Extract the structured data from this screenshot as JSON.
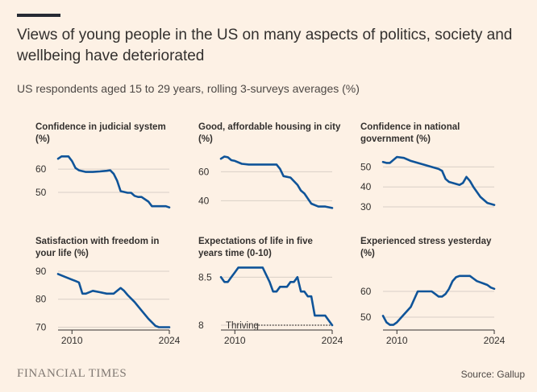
{
  "header": {
    "title": "Views of young people in the US on many aspects of politics, society and wellbeing have deteriorated",
    "subtitle": "US respondents aged 15 to 29 years, rolling 3-surveys averages (%)"
  },
  "footer": {
    "brand": "FINANCIAL TIMES",
    "source": "Source: Gallup"
  },
  "colors": {
    "background": "#fdf1e5",
    "line": "#0f5499",
    "grid": "#d9cfc6",
    "text": "#33302e",
    "reference": "#33302e"
  },
  "chart_data": [
    {
      "type": "line",
      "title_lines": [
        "Confidence in judicial system",
        "(%)"
      ],
      "yticks": [
        60,
        50
      ],
      "ylim": [
        42,
        67
      ],
      "xlim": [
        2008,
        2024
      ],
      "xticks": [],
      "x": [
        2008,
        2008.5,
        2009,
        2009.5,
        2010,
        2010.5,
        2011,
        2012,
        2013,
        2014,
        2015,
        2015.5,
        2016,
        2016.5,
        2017,
        2018,
        2018.5,
        2019,
        2019.5,
        2020,
        2021,
        2021.5,
        2022,
        2022.5,
        2023,
        2023.5,
        2024
      ],
      "values": [
        64.5,
        65.5,
        65.5,
        65.5,
        63.5,
        60.5,
        59.5,
        58.8,
        58.8,
        59,
        59.3,
        59.5,
        58,
        55,
        50.5,
        49.8,
        49.8,
        48.5,
        48,
        48,
        46,
        44,
        44,
        44,
        44,
        44,
        43.5
      ],
      "reference": null
    },
    {
      "type": "line",
      "title_lines": [
        "Good, affordable housing in city",
        "(%)"
      ],
      "yticks": [
        60,
        40
      ],
      "ylim": [
        33,
        73
      ],
      "xlim": [
        2008,
        2024
      ],
      "xticks": [],
      "x": [
        2008,
        2008.5,
        2009,
        2009.5,
        2010,
        2011,
        2012,
        2013,
        2014,
        2015,
        2016,
        2016.5,
        2017,
        2018,
        2019,
        2019.5,
        2020,
        2021,
        2022,
        2023,
        2024
      ],
      "values": [
        69,
        70.5,
        70,
        68,
        67.5,
        65.5,
        65,
        65,
        65,
        65,
        65,
        62,
        57,
        56,
        51,
        47,
        45,
        38,
        36,
        36,
        35
      ],
      "reference": null
    },
    {
      "type": "line",
      "title_lines": [
        "Confidence in national",
        "government (%)"
      ],
      "yticks": [
        50,
        40,
        30
      ],
      "ylim": [
        28,
        57
      ],
      "xlim": [
        2008,
        2024
      ],
      "xticks": [],
      "x": [
        2008,
        2008.5,
        2009,
        2009.5,
        2010,
        2011,
        2012,
        2013,
        2014,
        2015,
        2016,
        2016.5,
        2017,
        2017.5,
        2018,
        2018.5,
        2019,
        2019.5,
        2020,
        2020.5,
        2021,
        2022,
        2023,
        2024
      ],
      "values": [
        52.5,
        52,
        52,
        53.5,
        55,
        54.5,
        53,
        52,
        51,
        50,
        49,
        48,
        44,
        42.5,
        42,
        41.5,
        41,
        42,
        45,
        43,
        40,
        35,
        32,
        31
      ],
      "reference": null
    },
    {
      "type": "line",
      "title_lines": [
        "Satisfaction with freedom in",
        "your life (%)"
      ],
      "yticks": [
        90,
        80,
        70
      ],
      "ylim": [
        69,
        92
      ],
      "xlim": [
        2008,
        2024
      ],
      "xticks": [
        "2010",
        "2024"
      ],
      "x": [
        2008,
        2009,
        2010,
        2010.5,
        2011,
        2011.5,
        2012,
        2013,
        2014,
        2015,
        2016,
        2017,
        2017.5,
        2018,
        2019,
        2020,
        2021,
        2022,
        2022.5,
        2023,
        2023.5,
        2024
      ],
      "values": [
        89,
        88,
        87,
        86.5,
        86,
        82,
        82,
        83,
        82.5,
        82,
        82,
        84,
        83,
        81.5,
        79,
        76,
        73,
        70.5,
        70,
        70,
        70,
        70
      ],
      "reference": null
    },
    {
      "type": "line",
      "title_lines": [
        "Expectations of life in five",
        "years time (0-10)"
      ],
      "yticks": [
        8.5,
        8
      ],
      "ylim": [
        7.95,
        8.62
      ],
      "xlim": [
        2008,
        2024
      ],
      "xticks": [
        "2010",
        "2024"
      ],
      "x": [
        2008,
        2008.5,
        2009,
        2009.5,
        2010,
        2010.5,
        2011,
        2012,
        2013,
        2014,
        2015,
        2015.5,
        2016,
        2016.5,
        2017,
        2017.5,
        2018,
        2018.5,
        2019,
        2019.5,
        2020,
        2020.5,
        2021,
        2021.5,
        2022,
        2022.5,
        2023,
        2023.5,
        2024
      ],
      "values": [
        8.5,
        8.45,
        8.45,
        8.5,
        8.55,
        8.6,
        8.6,
        8.6,
        8.6,
        8.6,
        8.45,
        8.35,
        8.35,
        8.4,
        8.4,
        8.4,
        8.45,
        8.45,
        8.5,
        8.35,
        8.35,
        8.3,
        8.3,
        8.1,
        8.1,
        8.1,
        8.1,
        8.05,
        8.0
      ],
      "reference": {
        "label": "Thriving",
        "value": 8
      }
    },
    {
      "type": "line",
      "title_lines": [
        "Experienced stress yesterday",
        "(%)"
      ],
      "yticks": [
        60,
        50
      ],
      "ylim": [
        45,
        70
      ],
      "xlim": [
        2008,
        2024
      ],
      "xticks": [
        "2010",
        "2024"
      ],
      "x": [
        2008,
        2008.5,
        2009,
        2009.5,
        2010,
        2011,
        2012,
        2013,
        2013.5,
        2014,
        2015,
        2015.5,
        2016,
        2016.5,
        2017,
        2017.5,
        2018,
        2018.5,
        2019,
        2019.5,
        2020,
        2020.5,
        2021,
        2021.5,
        2022,
        2022.5,
        2023,
        2023.5,
        2024
      ],
      "values": [
        50.5,
        48,
        47,
        47,
        48,
        51,
        54,
        60,
        60,
        60,
        60,
        59,
        58,
        58,
        59,
        61,
        64,
        65.5,
        66,
        66,
        66,
        66,
        65,
        64,
        63.5,
        63,
        62.5,
        61.5,
        61
      ],
      "reference": null
    }
  ]
}
